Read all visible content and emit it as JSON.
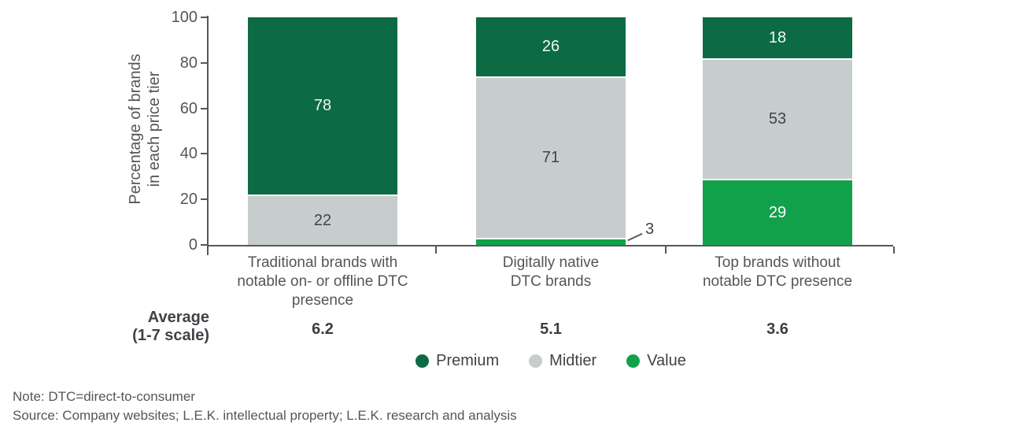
{
  "chart_data": {
    "type": "bar",
    "stacked": true,
    "ylabel": "Percentage of brands in each price tier",
    "ylabel_line1": "Percentage of brands",
    "ylabel_line2": "in each price tier",
    "ylim": [
      0,
      100
    ],
    "yticks": [
      0,
      20,
      40,
      60,
      80,
      100
    ],
    "grid": false,
    "legend_position": "bottom",
    "categories": [
      "Traditional brands with notable on- or offline DTC presence",
      "Digitally native DTC brands",
      "Top brands without notable DTC presence"
    ],
    "categories_lines": [
      [
        "Traditional brands with",
        "notable on- or offline DTC",
        "presence"
      ],
      [
        "Digitally native",
        "DTC brands"
      ],
      [
        "Top brands without",
        "notable DTC presence"
      ]
    ],
    "series": [
      {
        "name": "Premium",
        "color": "#0c6b42",
        "text_color": "#f2f7f4",
        "values": [
          78,
          26,
          18
        ]
      },
      {
        "name": "Midtier",
        "color": "#c7cdcc",
        "text_color": "#3f4446",
        "values": [
          22,
          71,
          53
        ]
      },
      {
        "name": "Value",
        "color": "#12a14b",
        "text_color": "#ffffff",
        "values": [
          0,
          3,
          29
        ]
      }
    ],
    "averages": {
      "label_line1": "Average",
      "label_line2": "(1-7 scale)",
      "values": [
        "6.2",
        "5.1",
        "3.6"
      ]
    }
  },
  "notes": {
    "note": "Note: DTC=direct-to-consumer",
    "source": "Source: Company websites; L.E.K. intellectual property; L.E.K. research and analysis"
  },
  "colors": {
    "premium": "#0c6b42",
    "midtier": "#c7cdcc",
    "value": "#12a14b",
    "axis": "#55585c",
    "text": "#53565a"
  }
}
